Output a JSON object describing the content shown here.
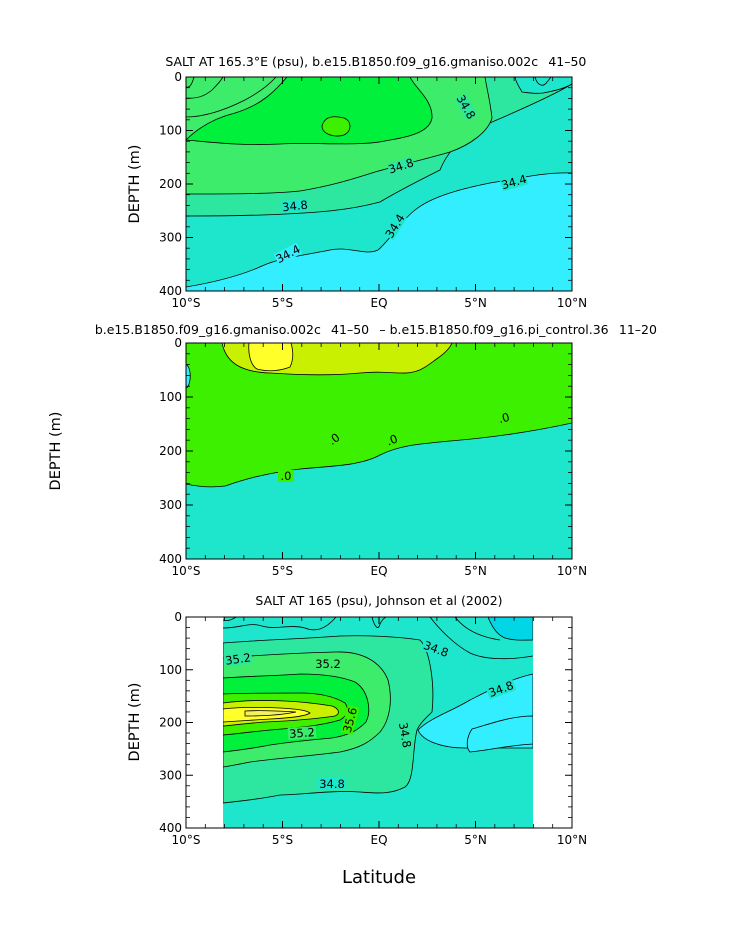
{
  "colors": {
    "cyan": "#33eeff",
    "aqua": "#1ee6cc",
    "seafoam": "#2de6a0",
    "light_green": "#3cec6a",
    "green": "#00f03c",
    "lime": "#3cf000",
    "yellow_green": "#c8f000",
    "yellow": "#ffff2a",
    "pale_yellow": "#f2f064",
    "panel3_lightcyan": "#00d6e6"
  },
  "chart_data": [
    {
      "type": "heatmap",
      "subtype": "contour",
      "title": "SALT AT 165.3°E (psu), b.e15.B1850.f09_g16.gmaniso.002c  41–50 ",
      "ylabel": "DEPTH (m)",
      "xlabel": "",
      "xlim": [
        "10°S",
        "10°N"
      ],
      "ylim": [
        400,
        0
      ],
      "x_ticks": [
        "10°S",
        "5°S",
        "EQ",
        "5°N",
        "10°N"
      ],
      "y_ticks": [
        "0",
        "100",
        "200",
        "300",
        "400"
      ],
      "contour_labels": [
        "34.8",
        "34.8",
        "34.8",
        "34.4",
        "34.4",
        "34.4"
      ]
    },
    {
      "type": "heatmap",
      "subtype": "contour",
      "title": "b.e15.B1850.f09_g16.gmaniso.002c  41–50  – b.e15.B1850.f09_g16.pi_control.36  11–20 ",
      "ylabel": "DEPTH (m)",
      "xlabel": "",
      "xlim": [
        "10°S",
        "10°N"
      ],
      "ylim": [
        400,
        0
      ],
      "x_ticks": [
        "10°S",
        "5°S",
        "EQ",
        "5°N",
        "10°N"
      ],
      "y_ticks": [
        "0",
        "100",
        "200",
        "300",
        "400"
      ],
      "contour_labels": [
        ".0",
        ".0",
        ".0",
        ".0"
      ]
    },
    {
      "type": "heatmap",
      "subtype": "contour",
      "title": "SALT AT 165 (psu), Johnson et al (2002)",
      "ylabel": "DEPTH (m)",
      "xlabel": "Latitude",
      "xlim": [
        "10°S",
        "10°N"
      ],
      "ylim": [
        400,
        0
      ],
      "x_ticks": [
        "10°S",
        "5°S",
        "EQ",
        "5°N",
        "10°N"
      ],
      "y_ticks": [
        "0",
        "100",
        "200",
        "300",
        "400"
      ],
      "contour_labels": [
        "35.2",
        "35.2",
        "35.6",
        "35.2",
        "34.8",
        "34.8",
        "34.8",
        "34.8"
      ]
    }
  ]
}
